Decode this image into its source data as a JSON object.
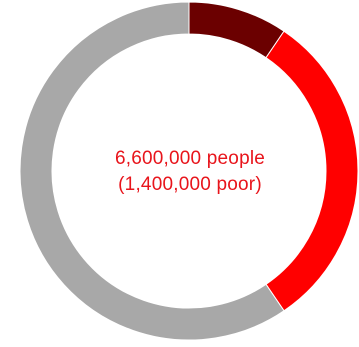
{
  "chart_data": {
    "type": "pie",
    "donut": true,
    "title": "",
    "slices": [
      {
        "value": 0.095,
        "color": "#6b0000"
      },
      {
        "value": 0.31,
        "color": "#ff0000"
      },
      {
        "value": 0.595,
        "color": "#a8a8a8"
      }
    ],
    "center_text": {
      "line1": "6,600,000 people",
      "line2": "(1,400,000 poor)",
      "color": "#e8141b"
    }
  }
}
